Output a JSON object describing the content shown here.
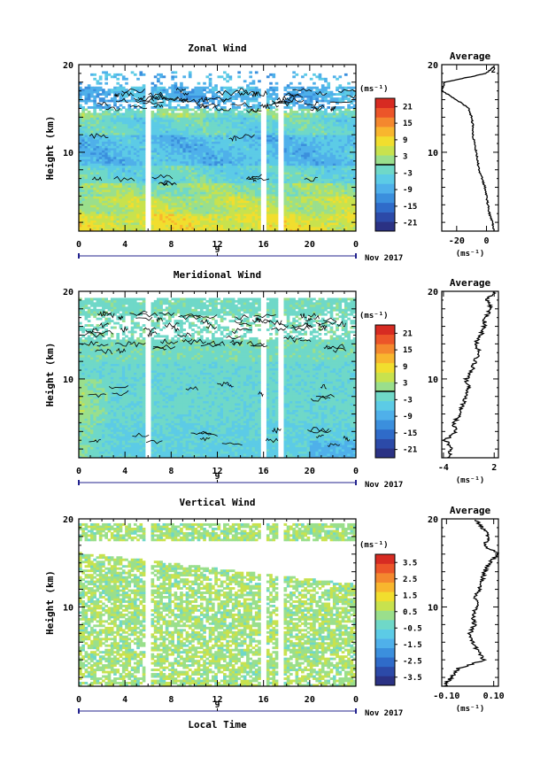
{
  "date_label": "Nov 2017",
  "xlabel_main": "Local Time",
  "unit_label": "(ms⁻¹)",
  "colorbar_colors": [
    "#2b3284",
    "#2c4aa8",
    "#2f6bc9",
    "#3b8fdd",
    "#4fb0ea",
    "#5ccbe6",
    "#6fd8c8",
    "#9adf8c",
    "#c8e24e",
    "#f1de2e",
    "#f8b62e",
    "#f4882e",
    "#ec5529",
    "#d72b22"
  ],
  "chart_data": [
    {
      "type": "heatmap",
      "title": "Zonal Wind",
      "ylabel": "Height (km)",
      "xlabel": "",
      "x_ticks": [
        "0",
        "4",
        "8",
        "12",
        "16",
        "20",
        "0"
      ],
      "y_ticks": [
        "20",
        "10"
      ],
      "xlim": [
        0,
        24
      ],
      "ylim": [
        1,
        20
      ],
      "day_marker": "9",
      "colorbar": {
        "unit": "(ms⁻¹)",
        "ticks": [
          "21",
          "15",
          "9",
          "3",
          "-3",
          "-9",
          "-15",
          "-21"
        ],
        "range": [
          -24,
          24
        ],
        "contour_level": 0
      },
      "data_gaps_hours": [
        6.0,
        16.0,
        17.5
      ],
      "average_profile": {
        "title": "Average",
        "x_ticks": [
          "-20",
          "0"
        ],
        "xlim": [
          -30,
          8
        ],
        "xlabel": "(ms⁻¹)",
        "y_ticks": [
          "20",
          "10"
        ],
        "inner_tick": "2",
        "height_km": [
          1,
          2,
          3,
          4,
          5,
          6,
          7,
          8,
          9,
          10,
          11,
          12,
          13,
          14,
          15,
          16,
          17,
          18,
          19,
          20
        ],
        "value": [
          5,
          4,
          2,
          1,
          0,
          -1,
          -3,
          -5,
          -6,
          -7,
          -8,
          -9,
          -9,
          -10,
          -12,
          -20,
          -30,
          -28,
          0,
          6
        ]
      }
    },
    {
      "type": "heatmap",
      "title": "Meridional Wind",
      "ylabel": "Height (km)",
      "xlabel": "",
      "x_ticks": [
        "0",
        "4",
        "8",
        "12",
        "16",
        "20",
        "0"
      ],
      "y_ticks": [
        "20",
        "10"
      ],
      "xlim": [
        0,
        24
      ],
      "ylim": [
        1,
        20
      ],
      "day_marker": "9",
      "colorbar": {
        "unit": "(ms⁻¹)",
        "ticks": [
          "21",
          "15",
          "9",
          "3",
          "-3",
          "-9",
          "-15",
          "-21"
        ],
        "range": [
          -24,
          24
        ],
        "contour_level": 0
      },
      "data_gaps_hours": [
        6.0,
        16.0,
        17.5
      ],
      "average_profile": {
        "title": "Average",
        "x_ticks": [
          "-4",
          "2"
        ],
        "xlim": [
          -4.2,
          2.5
        ],
        "xlabel": "(ms⁻¹)",
        "y_ticks": [
          "20",
          "10"
        ],
        "inner_tick": "",
        "height_km": [
          1,
          2,
          3,
          4,
          5,
          6,
          7,
          8,
          9,
          10,
          11,
          12,
          13,
          14,
          15,
          16,
          17,
          18,
          19,
          20
        ],
        "value": [
          -3.5,
          -3.0,
          -3.8,
          -2.5,
          -2.8,
          -2.0,
          -1.8,
          -1.2,
          -1.0,
          -1.3,
          -0.6,
          -0.3,
          0.2,
          -0.2,
          0.4,
          0.8,
          0.9,
          1.6,
          1.2,
          2.0
        ]
      }
    },
    {
      "type": "heatmap",
      "title": "Vertical Wind",
      "ylabel": "Height (km)",
      "xlabel": "Local Time",
      "x_ticks": [
        "0",
        "4",
        "8",
        "12",
        "16",
        "20",
        "0"
      ],
      "y_ticks": [
        "20",
        "10"
      ],
      "xlim": [
        0,
        24
      ],
      "ylim": [
        1,
        20
      ],
      "day_marker": "9",
      "colorbar": {
        "unit": "(ms⁻¹)",
        "ticks": [
          "3.5",
          "2.5",
          "1.5",
          "0.5",
          "-0.5",
          "-1.5",
          "-2.5",
          "-3.5"
        ],
        "range": [
          -4,
          4
        ],
        "contour_level": null
      },
      "data_gaps_hours": [
        6.0,
        16.0,
        17.5
      ],
      "average_profile": {
        "title": "Average",
        "x_ticks": [
          "-0.10",
          "0.10"
        ],
        "xlim": [
          -0.12,
          0.12
        ],
        "xlabel": "(ms⁻¹)",
        "y_ticks": [
          "20",
          "10"
        ],
        "inner_tick": "",
        "height_km": [
          1,
          2,
          3,
          4,
          5,
          6,
          7,
          8,
          9,
          10,
          11,
          12,
          13,
          14,
          15,
          16,
          17,
          18,
          19,
          20
        ],
        "value": [
          -0.11,
          -0.08,
          -0.05,
          0.06,
          0.03,
          0.01,
          0.0,
          0.02,
          0.01,
          0.03,
          0.02,
          0.04,
          0.05,
          0.06,
          0.08,
          0.12,
          0.06,
          0.08,
          0.05,
          0.02
        ]
      }
    }
  ]
}
